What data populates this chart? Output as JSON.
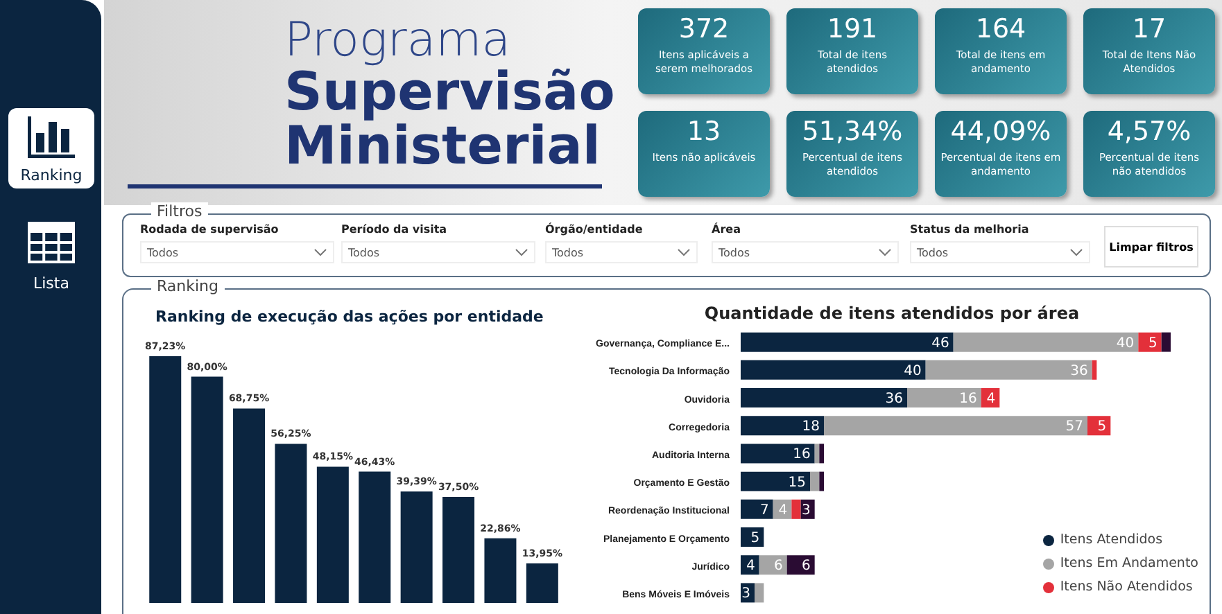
{
  "chart_data": [
    {
      "type": "other",
      "title": "Programa Supervisão Ministerial",
      "annotations": [
        "Ranking",
        "Lista",
        "372",
        "Itens aplicáveis a serem melhorados",
        "191",
        "Total de itens atendidos",
        "164",
        "Total de itens em andamento",
        "17",
        "Total de Itens Não Atendidos",
        "13",
        "Itens não aplicáveis",
        "51,34%",
        "Percentual de itens atendidos",
        "44,09%",
        "Percentual de itens em andamento",
        "4,57%",
        "Percentual de itens não atendidos"
      ]
    },
    {
      "type": "other",
      "title": "Filtros",
      "annotations": [
        "Rodada de supervisão",
        "Todos",
        "Período da visita",
        "Todos",
        "Órgão/entidade",
        "Todos",
        "Área",
        "Todos",
        "Status da melhoria",
        "Todos",
        "Limpar filtros"
      ]
    },
    {
      "type": "bar",
      "subtitle": "Ranking",
      "title": "Ranking de execução das ações por entidade",
      "categories": [
        null,
        null,
        null,
        null,
        null,
        null,
        null,
        null,
        null,
        null
      ],
      "values": [
        87.23,
        80.0,
        68.75,
        56.25,
        48.15,
        46.43,
        39.39,
        37.5,
        22.86,
        13.95
      ],
      "value_labels": [
        "87,23%",
        "80,00%",
        "68,75%",
        "56,25%",
        "48,15%",
        "46,43%",
        "39,39%",
        "37,50%",
        "22,86%",
        "13,95%"
      ],
      "color": "#0b2540",
      "grid": false
    },
    {
      "type": "bar",
      "orientation": "horizontal",
      "stacked": true,
      "title": "Quantidade de itens atendidos por área",
      "categories": [
        "Governança, Compliance E...",
        "Tecnologia Da Informação",
        "Ouvidoria",
        "Corregedoria",
        "Auditoria Interna",
        "Orçamento E Gestão",
        "Reordenação Institucional",
        "Planejamento E Orçamento",
        "Jurídico",
        "Bens Móveis E Imóveis"
      ],
      "series": [
        {
          "name": "Itens Atendidos",
          "color": "#0b2540",
          "values": [
            46,
            40,
            36,
            18,
            16,
            15,
            7,
            5,
            4,
            3
          ],
          "value_labels": [
            "46",
            "40",
            "36",
            "18",
            "16",
            "15",
            "7",
            "5",
            "4",
            "3"
          ]
        },
        {
          "name": "Itens Em Andamento",
          "color": "#a5a5a5",
          "values": [
            40,
            36,
            16,
            57,
            1,
            2,
            4,
            null,
            6,
            2
          ],
          "value_labels": [
            "40",
            "36",
            "16",
            "57",
            null,
            null,
            "4",
            null,
            "6",
            null
          ]
        },
        {
          "name": "Itens Não Atendidos",
          "color": "#e3303a",
          "values": [
            5,
            1,
            4,
            5,
            null,
            null,
            2,
            null,
            null,
            null
          ],
          "value_labels": [
            "5",
            null,
            "4",
            "5",
            null,
            null,
            null,
            null,
            null,
            null
          ]
        },
        {
          "color": "#2a0c33",
          "values": [
            2,
            null,
            null,
            null,
            1,
            1,
            3,
            null,
            6,
            null
          ],
          "value_labels": [
            null,
            null,
            null,
            null,
            null,
            null,
            "3",
            null,
            "6",
            null
          ]
        }
      ],
      "grid": false,
      "legend": "bottom right"
    }
  ]
}
